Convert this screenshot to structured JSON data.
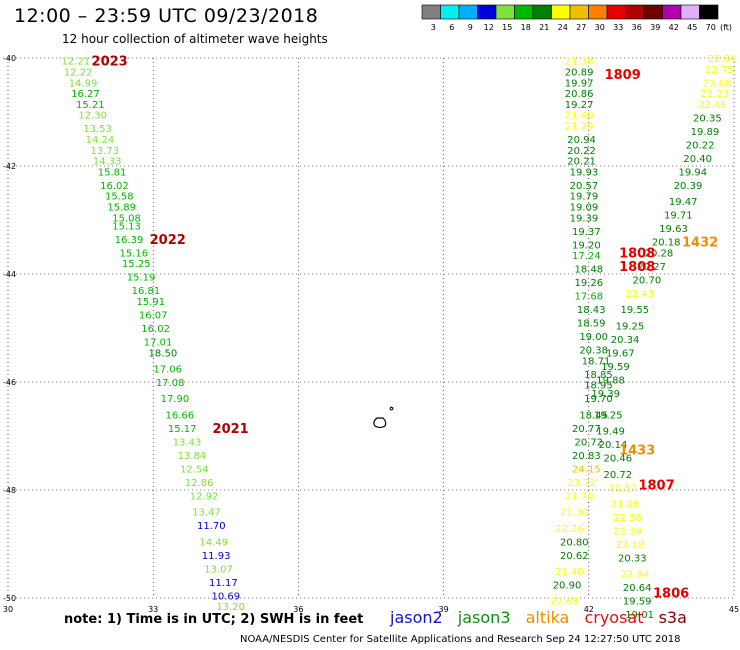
{
  "header": {
    "title": "12:00 – 23:59 UTC 09/23/2018",
    "subtitle": "12 hour collection of altimeter wave heights"
  },
  "footer": {
    "note": "note: 1) Time is in UTC; 2) SWH is in feet",
    "credit": "NOAA/NESDIS Center for Satellite Applications and Research   Sep 24 12:27:50 UTC 2018",
    "satellites": [
      {
        "name": "jason2",
        "color": "#1010d0"
      },
      {
        "name": "jason3",
        "color": "#109010"
      },
      {
        "name": "altika",
        "color": "#f08c00"
      },
      {
        "name": "cryosat",
        "color": "#e01010"
      },
      {
        "name": "s3a",
        "color": "#800000"
      }
    ]
  },
  "colors": {
    "c_gray": "#808080",
    "c_cyan": "#00f0f0",
    "c_lightblue": "#00b0ff",
    "c_blue": "#0000d8",
    "c_lightgreen": "#80e040",
    "c_green": "#00b800",
    "c_darkgreen": "#008000",
    "c_yellow": "#ffff00",
    "c_gold": "#f0c000",
    "c_orange": "#ff8000",
    "c_red": "#e80000",
    "c_darkred": "#b00000",
    "c_maroon": "#700000",
    "c_purple": "#b000b0",
    "c_violet": "#e0b0ff",
    "c_black": "#000000"
  },
  "chart_data": {
    "type": "scatter",
    "title": "12:00 – 23:59 UTC 09/23/2018",
    "subtitle": "12 hour collection of altimeter wave heights",
    "xlim": [
      30,
      45
    ],
    "ylim": [
      -50,
      -40
    ],
    "x_ticks": [
      "30",
      "33",
      "36",
      "39",
      "42",
      "45"
    ],
    "y_ticks": [
      "-40",
      "-42",
      "-44",
      "-46",
      "-48",
      "-50"
    ],
    "grid": true,
    "legend": {
      "unit": "(ft)",
      "values": [
        "3",
        "6",
        "9",
        "12",
        "15",
        "18",
        "21",
        "24",
        "27",
        "30",
        "33",
        "36",
        "39",
        "42",
        "45",
        "70"
      ],
      "colors": [
        "#808080",
        "#00f0f0",
        "#00b0ff",
        "#0000d8",
        "#80e040",
        "#00b800",
        "#008000",
        "#ffff00",
        "#f0c000",
        "#ff8000",
        "#e80000",
        "#b00000",
        "#700000",
        "#b000b0",
        "#e0b0ff",
        "#000000"
      ]
    },
    "pass_labels": [
      {
        "text": "2023",
        "x": 32.1,
        "y": -40.05,
        "color": "#b00000"
      },
      {
        "text": "2022",
        "x": 33.3,
        "y": -43.35,
        "color": "#b00000"
      },
      {
        "text": "2021",
        "x": 34.6,
        "y": -46.85,
        "color": "#b00000"
      },
      {
        "text": "1809",
        "x": 42.7,
        "y": -40.3,
        "color": "#e80000"
      },
      {
        "text": "1808",
        "x": 43.0,
        "y": -43.6,
        "color": "#e80000"
      },
      {
        "text": "1808",
        "x": 43.0,
        "y": -43.85,
        "color": "#e80000"
      },
      {
        "text": "1432",
        "x": 44.3,
        "y": -43.4,
        "color": "#f08c00"
      },
      {
        "text": "1433",
        "x": 43.0,
        "y": -47.25,
        "color": "#f08c00"
      },
      {
        "text": "1807",
        "x": 43.4,
        "y": -47.9,
        "color": "#e80000"
      },
      {
        "text": "1806",
        "x": 43.7,
        "y": -49.9,
        "color": "#e80000"
      }
    ],
    "points": [
      {
        "x": 31.4,
        "y": -40.05,
        "v": "12.21"
      },
      {
        "x": 31.45,
        "y": -40.25,
        "v": "12.22"
      },
      {
        "x": 31.55,
        "y": -40.45,
        "v": "14.99"
      },
      {
        "x": 31.6,
        "y": -40.65,
        "v": "16.27"
      },
      {
        "x": 31.7,
        "y": -40.85,
        "v": "15.21"
      },
      {
        "x": 31.75,
        "y": -41.05,
        "v": "12.30"
      },
      {
        "x": 31.85,
        "y": -41.3,
        "v": "13.53"
      },
      {
        "x": 31.9,
        "y": -41.5,
        "v": "14.24"
      },
      {
        "x": 32.0,
        "y": -41.7,
        "v": "13.73"
      },
      {
        "x": 32.05,
        "y": -41.9,
        "v": "14.33"
      },
      {
        "x": 32.15,
        "y": -42.1,
        "v": "15.81"
      },
      {
        "x": 32.2,
        "y": -42.35,
        "v": "16.02"
      },
      {
        "x": 32.3,
        "y": -42.55,
        "v": "15.58"
      },
      {
        "x": 32.35,
        "y": -42.75,
        "v": "15.89"
      },
      {
        "x": 32.45,
        "y": -42.95,
        "v": "15.08"
      },
      {
        "x": 32.45,
        "y": -43.1,
        "v": "15.13"
      },
      {
        "x": 32.5,
        "y": -43.35,
        "v": "16.39"
      },
      {
        "x": 32.6,
        "y": -43.6,
        "v": "15.16"
      },
      {
        "x": 32.65,
        "y": -43.8,
        "v": "15.25"
      },
      {
        "x": 32.75,
        "y": -44.05,
        "v": "15.19"
      },
      {
        "x": 32.85,
        "y": -44.3,
        "v": "16.81"
      },
      {
        "x": 32.95,
        "y": -44.5,
        "v": "15.91"
      },
      {
        "x": 33.0,
        "y": -44.75,
        "v": "16.07"
      },
      {
        "x": 33.05,
        "y": -45.0,
        "v": "16.02"
      },
      {
        "x": 33.1,
        "y": -45.25,
        "v": "17.01"
      },
      {
        "x": 33.2,
        "y": -45.45,
        "v": "18.50"
      },
      {
        "x": 33.3,
        "y": -45.75,
        "v": "17.06"
      },
      {
        "x": 33.35,
        "y": -46.0,
        "v": "17.08"
      },
      {
        "x": 33.45,
        "y": -46.3,
        "v": "17.90"
      },
      {
        "x": 33.55,
        "y": -46.6,
        "v": "16.66"
      },
      {
        "x": 33.6,
        "y": -46.85,
        "v": "15.17"
      },
      {
        "x": 33.7,
        "y": -47.1,
        "v": "13.43"
      },
      {
        "x": 33.8,
        "y": -47.35,
        "v": "13.84"
      },
      {
        "x": 33.85,
        "y": -47.6,
        "v": "12.54"
      },
      {
        "x": 33.95,
        "y": -47.85,
        "v": "12.86"
      },
      {
        "x": 34.05,
        "y": -48.1,
        "v": "12.92"
      },
      {
        "x": 34.1,
        "y": -48.4,
        "v": "13.47"
      },
      {
        "x": 34.2,
        "y": -48.65,
        "v": "11.70"
      },
      {
        "x": 34.25,
        "y": -48.95,
        "v": "14.49"
      },
      {
        "x": 34.3,
        "y": -49.2,
        "v": "11.93"
      },
      {
        "x": 34.35,
        "y": -49.45,
        "v": "13.07"
      },
      {
        "x": 34.45,
        "y": -49.7,
        "v": "11.17"
      },
      {
        "x": 34.5,
        "y": -49.95,
        "v": "10.69"
      },
      {
        "x": 34.6,
        "y": -50.15,
        "v": "13.20"
      },
      {
        "x": 41.8,
        "y": -40.05,
        "v": "21.38"
      },
      {
        "x": 41.8,
        "y": -40.25,
        "v": "20.89"
      },
      {
        "x": 41.8,
        "y": -40.45,
        "v": "19.97"
      },
      {
        "x": 41.8,
        "y": -40.65,
        "v": "20.86"
      },
      {
        "x": 41.8,
        "y": -40.85,
        "v": "19.27"
      },
      {
        "x": 41.8,
        "y": -41.05,
        "v": "21.40"
      },
      {
        "x": 41.8,
        "y": -41.25,
        "v": "21.29"
      },
      {
        "x": 41.85,
        "y": -41.5,
        "v": "20.94"
      },
      {
        "x": 41.85,
        "y": -41.7,
        "v": "20.22"
      },
      {
        "x": 41.85,
        "y": -41.9,
        "v": "20.21"
      },
      {
        "x": 41.9,
        "y": -42.1,
        "v": "19.93"
      },
      {
        "x": 41.9,
        "y": -42.35,
        "v": "20.57"
      },
      {
        "x": 41.9,
        "y": -42.55,
        "v": "19.79"
      },
      {
        "x": 41.9,
        "y": -42.75,
        "v": "19.09"
      },
      {
        "x": 41.9,
        "y": -42.95,
        "v": "19.39"
      },
      {
        "x": 41.95,
        "y": -43.2,
        "v": "19.37"
      },
      {
        "x": 41.95,
        "y": -43.45,
        "v": "19.20"
      },
      {
        "x": 41.95,
        "y": -43.65,
        "v": "17.24"
      },
      {
        "x": 42.0,
        "y": -43.9,
        "v": "18.48"
      },
      {
        "x": 42.0,
        "y": -44.15,
        "v": "19.26"
      },
      {
        "x": 42.0,
        "y": -44.4,
        "v": "17.68"
      },
      {
        "x": 42.05,
        "y": -44.65,
        "v": "18.43"
      },
      {
        "x": 42.05,
        "y": -44.9,
        "v": "18.59"
      },
      {
        "x": 42.1,
        "y": -45.15,
        "v": "19.00"
      },
      {
        "x": 42.1,
        "y": -45.4,
        "v": "20.38"
      },
      {
        "x": 42.15,
        "y": -45.6,
        "v": "18.71"
      },
      {
        "x": 42.2,
        "y": -45.85,
        "v": "18.85"
      },
      {
        "x": 42.2,
        "y": -46.05,
        "v": "18.95"
      },
      {
        "x": 42.2,
        "y": -46.3,
        "v": "19.70"
      },
      {
        "x": 42.1,
        "y": -46.6,
        "v": "18.45"
      },
      {
        "x": 41.95,
        "y": -46.85,
        "v": "20.77"
      },
      {
        "x": 42.0,
        "y": -47.1,
        "v": "20.72"
      },
      {
        "x": 41.95,
        "y": -47.35,
        "v": "20.83"
      },
      {
        "x": 41.95,
        "y": -47.6,
        "v": "24.15"
      },
      {
        "x": 41.85,
        "y": -47.85,
        "v": "23.72"
      },
      {
        "x": 41.8,
        "y": -48.1,
        "v": "21.70"
      },
      {
        "x": 41.7,
        "y": -48.4,
        "v": "21.30"
      },
      {
        "x": 41.6,
        "y": -48.7,
        "v": "22.26"
      },
      {
        "x": 41.7,
        "y": -48.95,
        "v": "20.80"
      },
      {
        "x": 41.7,
        "y": -49.2,
        "v": "20.62"
      },
      {
        "x": 41.6,
        "y": -49.5,
        "v": "21.40"
      },
      {
        "x": 41.55,
        "y": -49.75,
        "v": "20.90"
      },
      {
        "x": 41.5,
        "y": -50.05,
        "v": "22.68"
      },
      {
        "x": 44.75,
        "y": -40.0,
        "v": "22.84"
      },
      {
        "x": 44.7,
        "y": -40.2,
        "v": "22.75"
      },
      {
        "x": 44.65,
        "y": -40.45,
        "v": "23.68"
      },
      {
        "x": 44.6,
        "y": -40.65,
        "v": "21.23"
      },
      {
        "x": 44.55,
        "y": -40.85,
        "v": "22.46"
      },
      {
        "x": 44.45,
        "y": -41.1,
        "v": "20.35"
      },
      {
        "x": 44.4,
        "y": -41.35,
        "v": "19.89"
      },
      {
        "x": 44.3,
        "y": -41.6,
        "v": "20.22"
      },
      {
        "x": 44.25,
        "y": -41.85,
        "v": "20.40"
      },
      {
        "x": 44.15,
        "y": -42.1,
        "v": "19.94"
      },
      {
        "x": 44.05,
        "y": -42.35,
        "v": "20.39"
      },
      {
        "x": 43.95,
        "y": -42.65,
        "v": "19.47"
      },
      {
        "x": 43.85,
        "y": -42.9,
        "v": "19.71"
      },
      {
        "x": 43.75,
        "y": -43.15,
        "v": "19.63"
      },
      {
        "x": 43.6,
        "y": -43.4,
        "v": "20.18"
      },
      {
        "x": 43.45,
        "y": -43.6,
        "v": "20.28"
      },
      {
        "x": 43.3,
        "y": -43.85,
        "v": "20.27"
      },
      {
        "x": 43.2,
        "y": -44.1,
        "v": "20.70"
      },
      {
        "x": 43.05,
        "y": -44.35,
        "v": "22.43"
      },
      {
        "x": 42.95,
        "y": -44.65,
        "v": "19.55"
      },
      {
        "x": 42.85,
        "y": -44.95,
        "v": "19.25"
      },
      {
        "x": 42.75,
        "y": -45.2,
        "v": "20.34"
      },
      {
        "x": 42.65,
        "y": -45.45,
        "v": "19.67"
      },
      {
        "x": 42.55,
        "y": -45.7,
        "v": "19.59"
      },
      {
        "x": 42.45,
        "y": -45.95,
        "v": "19.88"
      },
      {
        "x": 42.35,
        "y": -46.2,
        "v": "19.39"
      },
      {
        "x": 42.4,
        "y": -46.6,
        "v": "19.25"
      },
      {
        "x": 42.45,
        "y": -46.9,
        "v": "19.49"
      },
      {
        "x": 42.5,
        "y": -47.15,
        "v": "20.14"
      },
      {
        "x": 42.6,
        "y": -47.4,
        "v": "20.46"
      },
      {
        "x": 42.6,
        "y": -47.7,
        "v": "20.72"
      },
      {
        "x": 42.7,
        "y": -47.95,
        "v": "21.57"
      },
      {
        "x": 42.75,
        "y": -48.25,
        "v": "21.08"
      },
      {
        "x": 42.8,
        "y": -48.5,
        "v": "22.58"
      },
      {
        "x": 42.8,
        "y": -48.75,
        "v": "22.39"
      },
      {
        "x": 42.85,
        "y": -49.0,
        "v": "23.18"
      },
      {
        "x": 42.9,
        "y": -49.25,
        "v": "20.33"
      },
      {
        "x": 42.95,
        "y": -49.55,
        "v": "22.94"
      },
      {
        "x": 43.0,
        "y": -49.8,
        "v": "20.64"
      },
      {
        "x": 43.0,
        "y": -50.05,
        "v": "19.59"
      },
      {
        "x": 43.05,
        "y": -50.3,
        "v": "19.01"
      }
    ]
  }
}
